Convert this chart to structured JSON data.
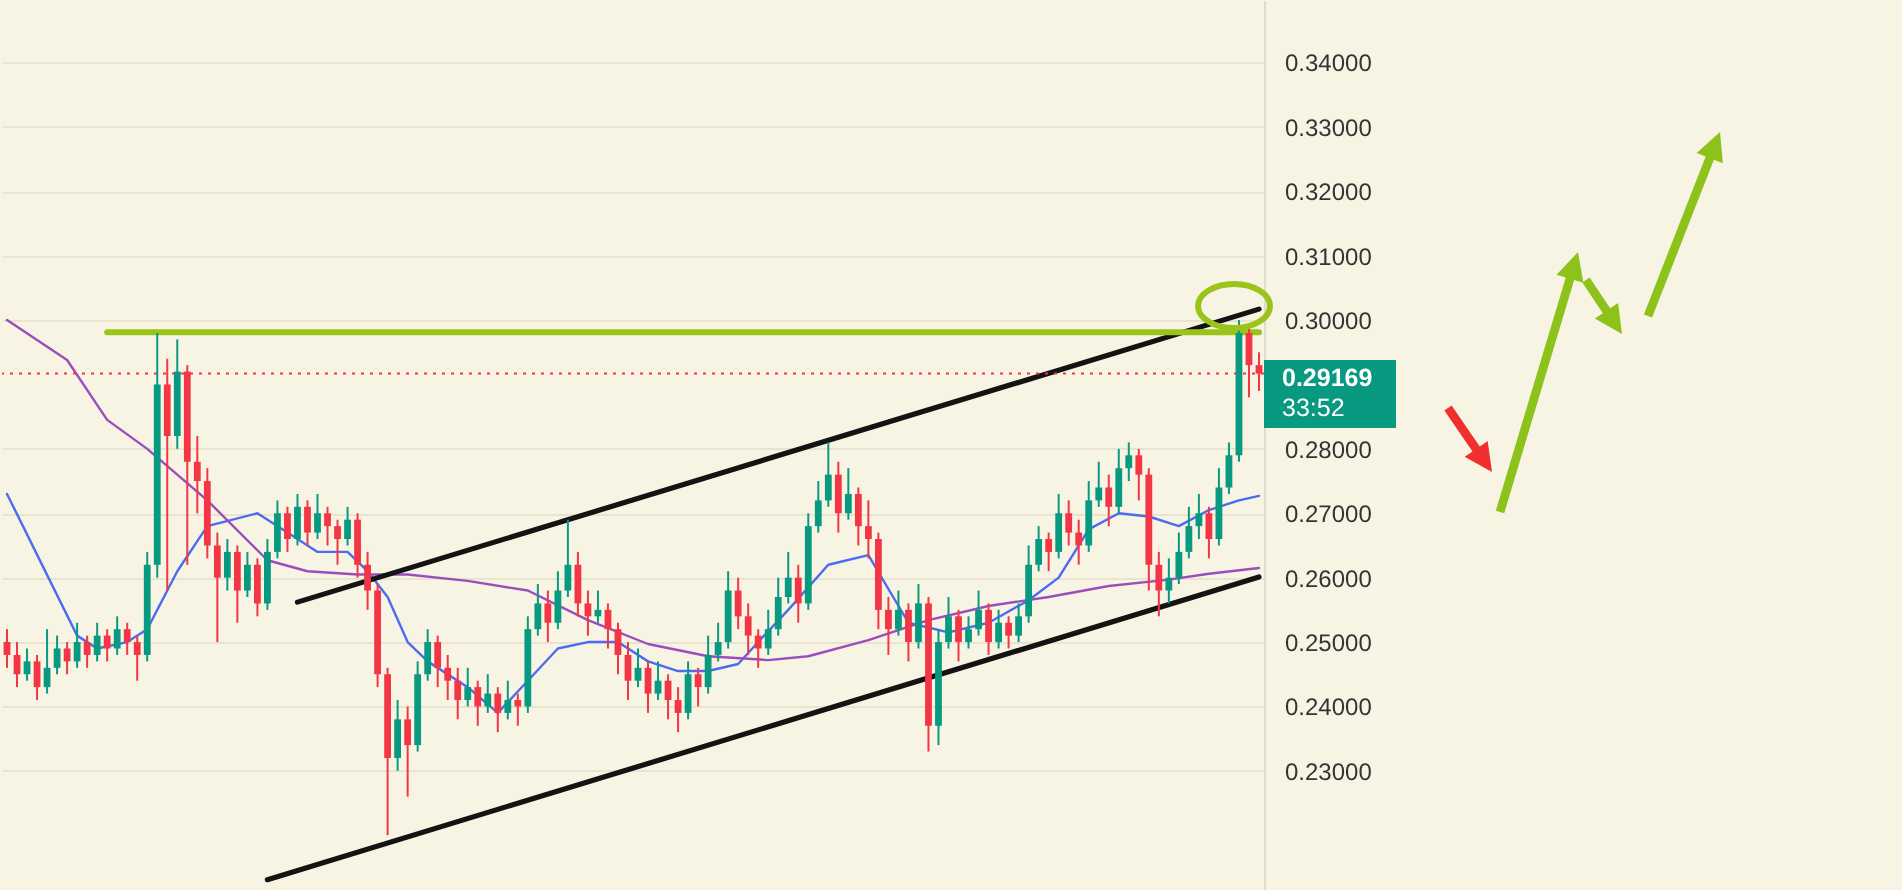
{
  "chart_data": {
    "type": "candlestick",
    "categories": [
      null,
      null,
      null,
      null,
      null,
      null,
      null,
      null,
      null,
      null,
      null,
      null,
      null,
      null,
      null,
      null,
      null,
      null,
      null,
      null,
      null,
      null,
      null,
      null,
      null,
      null,
      null,
      null,
      null,
      null,
      null,
      null,
      null,
      null,
      null,
      null,
      null,
      null,
      null,
      null,
      null,
      null,
      null,
      null,
      null,
      null,
      null,
      null,
      null,
      null,
      null,
      null,
      null,
      null,
      null,
      null,
      null,
      null,
      null,
      null,
      null,
      null,
      null,
      null,
      null,
      null,
      null,
      null,
      null,
      null,
      null,
      null,
      null,
      null,
      null,
      null,
      null,
      null,
      null,
      null,
      null,
      null,
      null,
      null,
      null,
      null,
      null,
      null,
      null,
      null,
      null,
      null,
      null,
      null,
      null,
      null,
      null,
      null,
      null,
      null,
      null,
      null,
      null,
      null,
      null,
      null,
      null,
      null,
      null,
      null,
      null,
      null,
      null,
      null,
      null,
      null,
      null,
      null,
      null,
      null,
      null,
      null,
      null,
      null,
      null,
      null
    ],
    "ohlc": [
      [
        0.25,
        0.252,
        0.246,
        0.248
      ],
      [
        0.248,
        0.25,
        0.243,
        0.245
      ],
      [
        0.245,
        0.249,
        0.244,
        0.247
      ],
      [
        0.247,
        0.248,
        0.241,
        0.243
      ],
      [
        0.243,
        0.252,
        0.242,
        0.246
      ],
      [
        0.246,
        0.251,
        0.245,
        0.249
      ],
      [
        0.249,
        0.25,
        0.245,
        0.247
      ],
      [
        0.247,
        0.253,
        0.246,
        0.25
      ],
      [
        0.25,
        0.251,
        0.246,
        0.248
      ],
      [
        0.248,
        0.253,
        0.247,
        0.251
      ],
      [
        0.251,
        0.252,
        0.247,
        0.249
      ],
      [
        0.249,
        0.254,
        0.248,
        0.252
      ],
      [
        0.252,
        0.253,
        0.248,
        0.25
      ],
      [
        0.25,
        0.251,
        0.244,
        0.248
      ],
      [
        0.248,
        0.264,
        0.247,
        0.262
      ],
      [
        0.262,
        0.298,
        0.26,
        0.29
      ],
      [
        0.29,
        0.294,
        0.258,
        0.282
      ],
      [
        0.282,
        0.297,
        0.28,
        0.292
      ],
      [
        0.292,
        0.293,
        0.262,
        0.278
      ],
      [
        0.278,
        0.282,
        0.27,
        0.275
      ],
      [
        0.275,
        0.277,
        0.263,
        0.265
      ],
      [
        0.265,
        0.267,
        0.25,
        0.26
      ],
      [
        0.26,
        0.266,
        0.258,
        0.264
      ],
      [
        0.264,
        0.265,
        0.253,
        0.258
      ],
      [
        0.258,
        0.264,
        0.257,
        0.262
      ],
      [
        0.262,
        0.263,
        0.254,
        0.256
      ],
      [
        0.256,
        0.266,
        0.255,
        0.264
      ],
      [
        0.264,
        0.272,
        0.263,
        0.27
      ],
      [
        0.27,
        0.271,
        0.264,
        0.266
      ],
      [
        0.266,
        0.273,
        0.265,
        0.271
      ],
      [
        0.271,
        0.272,
        0.265,
        0.267
      ],
      [
        0.267,
        0.273,
        0.266,
        0.27
      ],
      [
        0.27,
        0.271,
        0.265,
        0.268
      ],
      [
        0.268,
        0.269,
        0.262,
        0.266
      ],
      [
        0.266,
        0.271,
        0.265,
        0.269
      ],
      [
        0.269,
        0.27,
        0.26,
        0.262
      ],
      [
        0.262,
        0.264,
        0.255,
        0.258
      ],
      [
        0.258,
        0.259,
        0.243,
        0.245
      ],
      [
        0.245,
        0.246,
        0.22,
        0.232
      ],
      [
        0.232,
        0.241,
        0.23,
        0.238
      ],
      [
        0.238,
        0.24,
        0.226,
        0.234
      ],
      [
        0.234,
        0.247,
        0.233,
        0.245
      ],
      [
        0.245,
        0.252,
        0.244,
        0.25
      ],
      [
        0.25,
        0.251,
        0.243,
        0.246
      ],
      [
        0.246,
        0.248,
        0.241,
        0.244
      ],
      [
        0.244,
        0.246,
        0.238,
        0.241
      ],
      [
        0.241,
        0.246,
        0.24,
        0.243
      ],
      [
        0.243,
        0.244,
        0.237,
        0.24
      ],
      [
        0.24,
        0.245,
        0.239,
        0.242
      ],
      [
        0.242,
        0.243,
        0.236,
        0.239
      ],
      [
        0.239,
        0.244,
        0.238,
        0.241
      ],
      [
        0.241,
        0.242,
        0.237,
        0.24
      ],
      [
        0.24,
        0.254,
        0.239,
        0.252
      ],
      [
        0.252,
        0.259,
        0.251,
        0.256
      ],
      [
        0.256,
        0.258,
        0.25,
        0.253
      ],
      [
        0.253,
        0.261,
        0.252,
        0.258
      ],
      [
        0.258,
        0.269,
        0.257,
        0.262
      ],
      [
        0.262,
        0.264,
        0.254,
        0.256
      ],
      [
        0.256,
        0.258,
        0.251,
        0.254
      ],
      [
        0.254,
        0.258,
        0.253,
        0.255
      ],
      [
        0.255,
        0.256,
        0.249,
        0.252
      ],
      [
        0.252,
        0.253,
        0.245,
        0.248
      ],
      [
        0.248,
        0.25,
        0.241,
        0.244
      ],
      [
        0.244,
        0.249,
        0.243,
        0.246
      ],
      [
        0.246,
        0.247,
        0.239,
        0.242
      ],
      [
        0.242,
        0.247,
        0.241,
        0.244
      ],
      [
        0.244,
        0.245,
        0.238,
        0.241
      ],
      [
        0.241,
        0.243,
        0.236,
        0.239
      ],
      [
        0.239,
        0.247,
        0.238,
        0.245
      ],
      [
        0.245,
        0.246,
        0.24,
        0.243
      ],
      [
        0.243,
        0.251,
        0.242,
        0.248
      ],
      [
        0.248,
        0.253,
        0.247,
        0.25
      ],
      [
        0.25,
        0.261,
        0.249,
        0.258
      ],
      [
        0.258,
        0.26,
        0.252,
        0.254
      ],
      [
        0.254,
        0.256,
        0.248,
        0.251
      ],
      [
        0.251,
        0.252,
        0.246,
        0.249
      ],
      [
        0.249,
        0.255,
        0.248,
        0.252
      ],
      [
        0.252,
        0.26,
        0.251,
        0.257
      ],
      [
        0.257,
        0.264,
        0.256,
        0.26
      ],
      [
        0.26,
        0.262,
        0.253,
        0.256
      ],
      [
        0.256,
        0.27,
        0.255,
        0.268
      ],
      [
        0.268,
        0.275,
        0.267,
        0.272
      ],
      [
        0.272,
        0.281,
        0.271,
        0.276
      ],
      [
        0.276,
        0.278,
        0.267,
        0.27
      ],
      [
        0.27,
        0.277,
        0.269,
        0.273
      ],
      [
        0.273,
        0.274,
        0.265,
        0.268
      ],
      [
        0.268,
        0.272,
        0.263,
        0.266
      ],
      [
        0.266,
        0.267,
        0.252,
        0.255
      ],
      [
        0.255,
        0.257,
        0.248,
        0.252
      ],
      [
        0.252,
        0.258,
        0.251,
        0.255
      ],
      [
        0.255,
        0.256,
        0.247,
        0.25
      ],
      [
        0.25,
        0.259,
        0.249,
        0.256
      ],
      [
        0.256,
        0.257,
        0.233,
        0.237
      ],
      [
        0.237,
        0.252,
        0.234,
        0.25
      ],
      [
        0.25,
        0.257,
        0.249,
        0.254
      ],
      [
        0.254,
        0.255,
        0.247,
        0.25
      ],
      [
        0.25,
        0.254,
        0.249,
        0.252
      ],
      [
        0.252,
        0.258,
        0.251,
        0.255
      ],
      [
        0.255,
        0.256,
        0.248,
        0.25
      ],
      [
        0.25,
        0.255,
        0.249,
        0.253
      ],
      [
        0.253,
        0.254,
        0.249,
        0.251
      ],
      [
        0.251,
        0.256,
        0.25,
        0.254
      ],
      [
        0.254,
        0.265,
        0.253,
        0.262
      ],
      [
        0.262,
        0.268,
        0.261,
        0.266
      ],
      [
        0.266,
        0.267,
        0.261,
        0.264
      ],
      [
        0.264,
        0.273,
        0.263,
        0.27
      ],
      [
        0.27,
        0.272,
        0.265,
        0.267
      ],
      [
        0.267,
        0.269,
        0.262,
        0.265
      ],
      [
        0.265,
        0.275,
        0.264,
        0.272
      ],
      [
        0.272,
        0.278,
        0.271,
        0.274
      ],
      [
        0.274,
        0.276,
        0.268,
        0.271
      ],
      [
        0.271,
        0.28,
        0.27,
        0.277
      ],
      [
        0.277,
        0.281,
        0.275,
        0.279
      ],
      [
        0.279,
        0.28,
        0.272,
        0.276
      ],
      [
        0.276,
        0.277,
        0.258,
        0.262
      ],
      [
        0.262,
        0.264,
        0.254,
        0.258
      ],
      [
        0.258,
        0.263,
        0.256,
        0.26
      ],
      [
        0.26,
        0.267,
        0.259,
        0.264
      ],
      [
        0.264,
        0.271,
        0.263,
        0.268
      ],
      [
        0.268,
        0.273,
        0.266,
        0.27
      ],
      [
        0.27,
        0.271,
        0.263,
        0.266
      ],
      [
        0.266,
        0.277,
        0.265,
        0.274
      ],
      [
        0.274,
        0.281,
        0.273,
        0.279
      ],
      [
        0.279,
        0.3,
        0.278,
        0.298
      ],
      [
        0.298,
        0.299,
        0.288,
        0.293
      ],
      [
        0.293,
        0.295,
        0.289,
        0.29169
      ]
    ],
    "colors": [
      "#f23645",
      "#f23645",
      "#089981",
      "#f23645",
      "#089981",
      "#089981",
      "#f23645",
      "#089981",
      "#f23645",
      "#089981",
      "#f23645",
      "#089981",
      "#f23645",
      "#f23645",
      "#089981",
      "#089981",
      "#f23645",
      "#089981",
      "#f23645",
      "#f23645",
      "#f23645",
      "#f23645",
      "#089981",
      "#f23645",
      "#089981",
      "#f23645",
      "#089981",
      "#089981",
      "#f23645",
      "#089981",
      "#f23645",
      "#089981",
      "#f23645",
      "#f23645",
      "#089981",
      "#f23645",
      "#f23645",
      "#f23645",
      "#f23645",
      "#089981",
      "#f23645",
      "#089981",
      "#089981",
      "#f23645",
      "#f23645",
      "#f23645",
      "#089981",
      "#f23645",
      "#089981",
      "#f23645",
      "#089981",
      "#f23645",
      "#089981",
      "#089981",
      "#f23645",
      "#089981",
      "#089981",
      "#f23645",
      "#f23645",
      "#089981",
      "#f23645",
      "#f23645",
      "#f23645",
      "#089981",
      "#f23645",
      "#089981",
      "#f23645",
      "#f23645",
      "#089981",
      "#f23645",
      "#089981",
      "#089981",
      "#089981",
      "#f23645",
      "#f23645",
      "#f23645",
      "#089981",
      "#089981",
      "#089981",
      "#f23645",
      "#089981",
      "#089981",
      "#089981",
      "#f23645",
      "#089981",
      "#f23645",
      "#f23645",
      "#f23645",
      "#f23645",
      "#089981",
      "#f23645",
      "#089981",
      "#f23645",
      "#089981",
      "#089981",
      "#f23645",
      "#089981",
      "#089981",
      "#f23645",
      "#089981",
      "#f23645",
      "#089981",
      "#089981",
      "#089981",
      "#f23645",
      "#089981",
      "#f23645",
      "#f23645",
      "#089981",
      "#089981",
      "#f23645",
      "#089981",
      "#089981",
      "#f23645",
      "#f23645",
      "#f23645",
      "#089981",
      "#089981",
      "#089981",
      "#089981",
      "#f23645",
      "#089981",
      "#089981",
      "#089981",
      "#f23645",
      "#f23645"
    ],
    "series": [
      {
        "type": "line",
        "color": "#4a6cf0",
        "values": [
          0.273,
          null,
          null,
          null,
          null,
          null,
          null,
          0.251,
          null,
          0.249,
          null,
          null,
          0.25,
          null,
          0.252,
          null,
          null,
          0.261,
          null,
          null,
          0.268,
          null,
          null,
          null,
          null,
          0.27,
          null,
          null,
          0.267,
          null,
          null,
          0.264,
          null,
          null,
          0.264,
          null,
          0.261,
          null,
          0.257,
          null,
          0.25,
          null,
          0.247,
          null,
          null,
          null,
          0.243,
          null,
          null,
          0.239,
          null,
          null,
          0.244,
          null,
          null,
          0.249,
          null,
          null,
          0.25,
          null,
          null,
          0.25,
          null,
          null,
          0.247,
          null,
          null,
          0.2455,
          null,
          null,
          0.2455,
          null,
          null,
          0.2466,
          null,
          0.25,
          null,
          null,
          0.255,
          null,
          null,
          null,
          0.262,
          null,
          null,
          null,
          0.2635,
          null,
          null,
          null,
          0.253,
          null,
          null,
          null,
          0.2515,
          null,
          null,
          null,
          0.253,
          null,
          null,
          null,
          0.2565,
          null,
          null,
          0.26,
          null,
          null,
          0.2675,
          null,
          null,
          0.27,
          null,
          null,
          0.2695,
          null,
          null,
          0.268,
          null,
          null,
          0.2705,
          null,
          null,
          0.272,
          null,
          0.2727
        ]
      },
      {
        "type": "line",
        "color": "#9c4dbb",
        "values": [
          0.3,
          null,
          null,
          null,
          null,
          null,
          0.2938,
          null,
          null,
          null,
          0.2845,
          null,
          null,
          null,
          0.28,
          null,
          null,
          null,
          null,
          null,
          0.272,
          null,
          null,
          null,
          null,
          null,
          0.2627,
          null,
          null,
          null,
          0.261,
          null,
          null,
          null,
          null,
          0.2605,
          null,
          null,
          null,
          null,
          0.2605,
          null,
          null,
          null,
          null,
          null,
          0.2595,
          null,
          null,
          null,
          null,
          null,
          0.258,
          null,
          null,
          null,
          null,
          null,
          0.2534,
          null,
          null,
          null,
          null,
          null,
          0.2497,
          null,
          null,
          null,
          null,
          null,
          0.2478,
          null,
          null,
          null,
          null,
          null,
          0.2472,
          null,
          null,
          null,
          0.2478,
          null,
          null,
          null,
          null,
          null,
          0.2503,
          null,
          null,
          null,
          null,
          null,
          0.2534,
          null,
          null,
          null,
          null,
          null,
          0.2556,
          null,
          null,
          null,
          null,
          null,
          0.257,
          null,
          null,
          null,
          null,
          null,
          0.2587,
          null,
          null,
          null,
          null,
          null,
          0.2597,
          null,
          null,
          null,
          0.2606,
          null,
          null,
          null,
          null,
          0.2615
        ]
      },
      {
        "type": "line",
        "color": "#131313",
        "values": [
          null,
          null,
          null,
          null,
          null,
          null,
          null,
          null,
          null,
          null,
          null,
          null,
          null,
          null,
          null,
          null,
          null,
          null,
          null,
          null,
          null,
          null,
          null,
          null,
          null,
          null,
          null,
          null,
          null,
          0.2562,
          null,
          null,
          null,
          null,
          null,
          null,
          null,
          null,
          null,
          null,
          null,
          null,
          null,
          null,
          null,
          null,
          null,
          null,
          null,
          null,
          null,
          null,
          null,
          null,
          null,
          null,
          null,
          null,
          null,
          null,
          null,
          null,
          null,
          null,
          null,
          null,
          null,
          null,
          null,
          null,
          null,
          null,
          null,
          null,
          null,
          null,
          null,
          null,
          null,
          null,
          null,
          null,
          null,
          null,
          null,
          null,
          null,
          null,
          null,
          null,
          null,
          null,
          null,
          null,
          null,
          null,
          null,
          null,
          null,
          null,
          null,
          null,
          null,
          null,
          null,
          null,
          null,
          null,
          null,
          null,
          null,
          null,
          null,
          null,
          null,
          null,
          null,
          null,
          null,
          null,
          null,
          null,
          null,
          null,
          null,
          0.3017
        ]
      },
      {
        "type": "line",
        "color": "#131313",
        "values": [
          null,
          null,
          null,
          null,
          null,
          null,
          null,
          null,
          null,
          null,
          null,
          null,
          null,
          null,
          null,
          null,
          null,
          null,
          null,
          null,
          null,
          null,
          null,
          null,
          null,
          null,
          0.2131,
          null,
          null,
          null,
          null,
          null,
          null,
          null,
          null,
          null,
          null,
          null,
          null,
          null,
          null,
          null,
          null,
          null,
          null,
          null,
          null,
          null,
          null,
          null,
          null,
          null,
          null,
          null,
          null,
          null,
          null,
          null,
          null,
          null,
          null,
          null,
          null,
          null,
          null,
          null,
          null,
          null,
          null,
          null,
          null,
          null,
          null,
          null,
          null,
          null,
          null,
          null,
          null,
          null,
          null,
          null,
          null,
          null,
          null,
          null,
          null,
          null,
          null,
          null,
          null,
          null,
          null,
          null,
          null,
          null,
          null,
          null,
          null,
          null,
          null,
          null,
          null,
          null,
          null,
          null,
          null,
          null,
          null,
          null,
          null,
          null,
          null,
          null,
          null,
          null,
          null,
          null,
          null,
          null,
          null,
          null,
          null,
          null,
          null,
          0.2601
        ]
      },
      {
        "type": "line",
        "color": "#9bc41a",
        "values": [
          null,
          null,
          null,
          null,
          null,
          null,
          null,
          null,
          null,
          null,
          0.2981,
          null,
          null,
          null,
          null,
          null,
          null,
          null,
          null,
          null,
          null,
          null,
          null,
          null,
          null,
          null,
          null,
          null,
          null,
          null,
          null,
          null,
          null,
          null,
          null,
          null,
          null,
          null,
          null,
          null,
          null,
          null,
          null,
          null,
          null,
          null,
          null,
          null,
          null,
          null,
          null,
          null,
          null,
          null,
          null,
          null,
          null,
          null,
          null,
          null,
          null,
          null,
          null,
          null,
          null,
          null,
          null,
          null,
          null,
          null,
          null,
          null,
          null,
          null,
          null,
          null,
          null,
          null,
          null,
          null,
          null,
          null,
          null,
          null,
          null,
          null,
          null,
          null,
          null,
          null,
          null,
          null,
          null,
          null,
          null,
          null,
          null,
          null,
          null,
          null,
          null,
          null,
          null,
          null,
          null,
          null,
          null,
          null,
          null,
          null,
          null,
          null,
          null,
          null,
          null,
          null,
          null,
          null,
          null,
          null,
          null,
          null,
          null,
          null,
          null,
          0.2981
        ]
      }
    ],
    "ylim": [
      0.2115,
      0.3497
    ],
    "yticks": [
      {
        "value": 0.23,
        "label": "0.23000"
      },
      {
        "value": 0.24,
        "label": "0.24000"
      },
      {
        "value": 0.25,
        "label": "0.25000"
      },
      {
        "value": 0.26,
        "label": "0.26000"
      },
      {
        "value": 0.27,
        "label": "0.27000"
      },
      {
        "value": 0.28,
        "label": "0.28000"
      },
      {
        "value": 0.3,
        "label": "0.30000"
      },
      {
        "value": 0.31,
        "label": "0.31000"
      },
      {
        "value": 0.32,
        "label": "0.32000"
      },
      {
        "value": 0.33,
        "label": "0.33000"
      },
      {
        "value": 0.34,
        "label": "0.34000"
      }
    ],
    "tick_labels": "y",
    "grid": "y",
    "ref_lines": [
      {
        "axis": "y",
        "value": 0.29169,
        "label": "0.29169",
        "color": "#f23645",
        "line_style": "dotted"
      }
    ],
    "annotations": [
      "33:52"
    ]
  }
}
